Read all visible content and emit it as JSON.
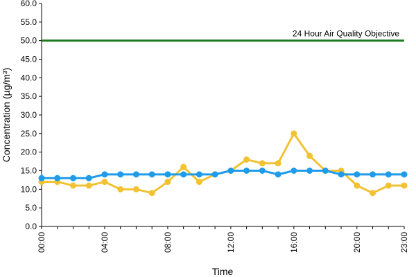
{
  "chart_data": {
    "type": "line",
    "xlabel": "Time",
    "ylabel": "Concentration (µg/m³)",
    "ylim": [
      0,
      60
    ],
    "yticks": [
      "0.0",
      "5.0",
      "10.0",
      "15.0",
      "20.0",
      "25.0",
      "30.0",
      "35.0",
      "40.0",
      "45.0",
      "50.0",
      "55.0",
      "60.0"
    ],
    "xticks": [
      {
        "hour": 0,
        "label": "00:00"
      },
      {
        "hour": 4,
        "label": "04:00"
      },
      {
        "hour": 8,
        "label": "08:00"
      },
      {
        "hour": 12,
        "label": "12:00"
      },
      {
        "hour": 16,
        "label": "16:00"
      },
      {
        "hour": 20,
        "label": "20:00"
      },
      {
        "hour": 23,
        "label": "23:00"
      }
    ],
    "xrange": [
      0,
      23
    ],
    "grid": false,
    "objective": {
      "value": 50,
      "label": "24 Hour Air Quality Objective",
      "color": "#1e7b1e"
    },
    "series": [
      {
        "color": "#f2c232",
        "hours": [
          0,
          1,
          2,
          3,
          4,
          5,
          6,
          7,
          8,
          9,
          10,
          11,
          12,
          13,
          14,
          15,
          16,
          17,
          18,
          19,
          20,
          21,
          22,
          23
        ],
        "values": [
          12,
          12,
          11,
          11,
          12,
          10,
          10,
          9,
          12,
          16,
          12,
          14,
          15,
          18,
          17,
          17,
          25,
          19,
          15,
          15,
          11,
          9,
          11,
          11
        ]
      },
      {
        "color": "#1e9be9",
        "hours": [
          0,
          1,
          2,
          3,
          4,
          5,
          6,
          7,
          8,
          9,
          10,
          11,
          12,
          13,
          14,
          15,
          16,
          17,
          18,
          19,
          20,
          21,
          22,
          23
        ],
        "values": [
          13,
          13,
          13,
          13,
          14,
          14,
          14,
          14,
          14,
          14,
          14,
          14,
          15,
          15,
          15,
          14,
          15,
          15,
          15,
          14,
          14,
          14,
          14,
          14
        ]
      }
    ]
  }
}
